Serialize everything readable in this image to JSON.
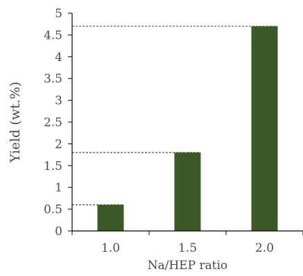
{
  "chart_data": {
    "type": "bar",
    "title": "",
    "xlabel": "Na/HEP ratio",
    "ylabel": "Yield (wt.%)",
    "categories": [
      "1.0",
      "1.5",
      "2.0"
    ],
    "values": [
      0.6,
      1.8,
      4.7
    ],
    "ylim": [
      0,
      5
    ],
    "yticks": [
      {
        "value": 0,
        "label": "0"
      },
      {
        "value": 0.5,
        "label": "0.5"
      },
      {
        "value": 1,
        "label": "1"
      },
      {
        "value": 1.5,
        "label": "1.5"
      },
      {
        "value": 2,
        "label": "2"
      },
      {
        "value": 2.5,
        "label": "2.5"
      },
      {
        "value": 3,
        "label": "3"
      },
      {
        "value": 3.5,
        "label": "3.5"
      },
      {
        "value": 4,
        "label": "4"
      },
      {
        "value": 4.5,
        "label": "4.5"
      },
      {
        "value": 5,
        "label": "5"
      }
    ],
    "grid": false,
    "reference_lines": "dashed horizontal line from y-axis to the top of each bar",
    "colors": {
      "bar": "#3b5a27",
      "axis": "#000000",
      "dashed_line": "#000000",
      "text": "#4a4a4a"
    }
  }
}
